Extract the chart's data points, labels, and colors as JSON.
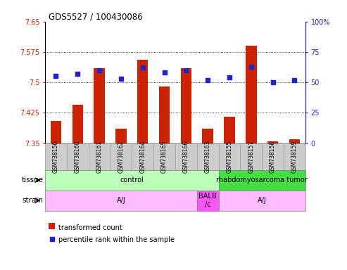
{
  "title": "GDS5527 / 100430086",
  "samples": [
    "GSM738156",
    "GSM738160",
    "GSM738161",
    "GSM738162",
    "GSM738164",
    "GSM738165",
    "GSM738166",
    "GSM738163",
    "GSM738155",
    "GSM738157",
    "GSM738158",
    "GSM738159"
  ],
  "bar_values": [
    7.405,
    7.445,
    7.535,
    7.385,
    7.555,
    7.49,
    7.535,
    7.385,
    7.415,
    7.59,
    7.355,
    7.36
  ],
  "dot_values": [
    55,
    57,
    60,
    53,
    62,
    58,
    60,
    52,
    54,
    63,
    50,
    52
  ],
  "bar_base": 7.35,
  "ylim_left": [
    7.35,
    7.65
  ],
  "ylim_right": [
    0,
    100
  ],
  "yticks_left": [
    7.35,
    7.425,
    7.5,
    7.575,
    7.65
  ],
  "yticks_right": [
    0,
    25,
    50,
    75,
    100
  ],
  "bar_color": "#cc2200",
  "dot_color": "#2222cc",
  "grid_color": "#000000",
  "tissue_groups": [
    {
      "label": "control",
      "start": 0,
      "end": 8,
      "color": "#bbffbb"
    },
    {
      "label": "rhabdomyosarcoma tumor",
      "start": 8,
      "end": 12,
      "color": "#44dd44"
    }
  ],
  "strain_groups": [
    {
      "label": "A/J",
      "start": 0,
      "end": 7,
      "color": "#ffbbff"
    },
    {
      "label": "BALB\n/c",
      "start": 7,
      "end": 8,
      "color": "#ff55ff"
    },
    {
      "label": "A/J",
      "start": 8,
      "end": 12,
      "color": "#ffbbff"
    }
  ],
  "tissue_label": "tissue",
  "strain_label": "strain",
  "legend_bar_label": "transformed count",
  "legend_dot_label": "percentile rank within the sample",
  "background_color": "#ffffff",
  "plot_bg_color": "#ffffff",
  "label_box_color": "#cccccc",
  "label_box_edge": "#999999"
}
